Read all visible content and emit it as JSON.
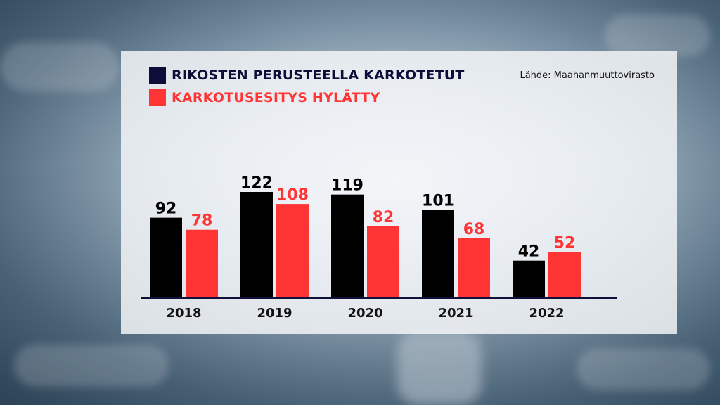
{
  "source_text": "Lähde: Maahanmuuttovirasto",
  "colors": {
    "series1": "#000000",
    "series2": "#ff3535",
    "swatch1": "#0d0d3a",
    "axis": "#101038"
  },
  "chart_data": {
    "type": "bar",
    "title": "",
    "xlabel": "",
    "ylabel": "",
    "ylim": [
      0,
      130
    ],
    "grid": false,
    "legend_position": "top-left",
    "categories": [
      "2018",
      "2019",
      "2020",
      "2021",
      "2022"
    ],
    "series": [
      {
        "name": "RIKOSTEN PERUSTEELLA KARKOTETUT",
        "values": [
          92,
          122,
          119,
          101,
          42
        ]
      },
      {
        "name": "KARKOTUSESITYS HYLÄTTY",
        "values": [
          78,
          108,
          82,
          68,
          52
        ]
      }
    ]
  }
}
